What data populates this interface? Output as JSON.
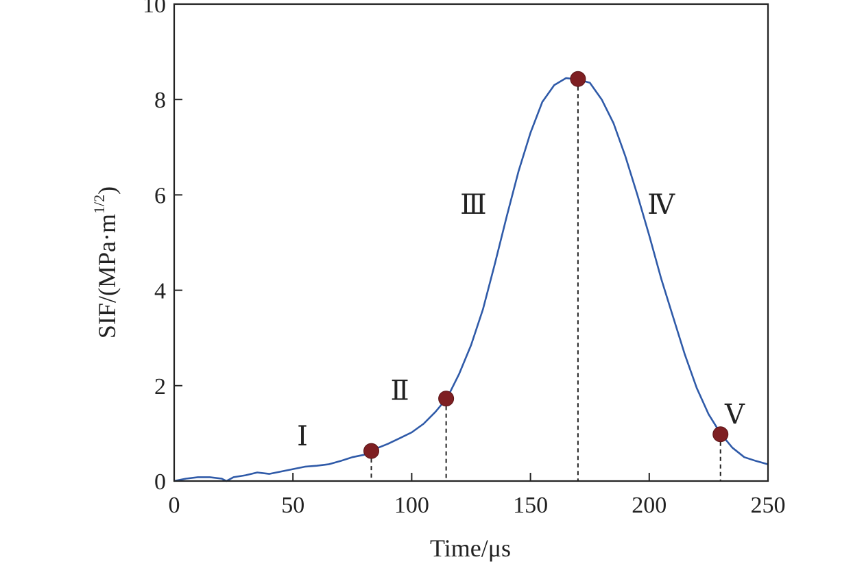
{
  "chart_data": {
    "type": "line",
    "title": "",
    "xlabel": "Time/μs",
    "ylabel_main": "SIF/(MPa·m",
    "ylabel_sup": "1/2",
    "ylabel_close": ")",
    "xlim": [
      0,
      250
    ],
    "ylim": [
      0,
      10
    ],
    "xticks": [
      0,
      50,
      100,
      150,
      200,
      250
    ],
    "yticks": [
      0,
      2,
      4,
      6,
      8,
      10
    ],
    "x_tick_labels": [
      "0",
      "50",
      "100",
      "150",
      "200",
      "250"
    ],
    "y_tick_labels": [
      "0",
      "2",
      "4",
      "6",
      "8",
      "10"
    ],
    "grid": false,
    "series": [
      {
        "color": "#2f5aa8",
        "x": [
          0,
          5,
          10,
          15,
          20,
          22,
          25,
          30,
          35,
          40,
          45,
          50,
          55,
          60,
          65,
          70,
          75,
          80,
          83,
          85,
          90,
          95,
          100,
          105,
          110,
          115,
          120,
          125,
          130,
          135,
          140,
          145,
          150,
          155,
          160,
          165,
          170,
          175,
          180,
          185,
          190,
          195,
          200,
          205,
          210,
          215,
          220,
          225,
          230,
          235,
          240,
          245,
          250
        ],
        "y": [
          0.0,
          0.05,
          0.08,
          0.08,
          0.05,
          0.0,
          0.08,
          0.12,
          0.18,
          0.15,
          0.2,
          0.25,
          0.3,
          0.32,
          0.35,
          0.42,
          0.5,
          0.55,
          0.63,
          0.68,
          0.78,
          0.9,
          1.02,
          1.2,
          1.45,
          1.75,
          2.25,
          2.85,
          3.6,
          4.55,
          5.55,
          6.5,
          7.3,
          7.95,
          8.3,
          8.45,
          8.42,
          8.35,
          8.0,
          7.5,
          6.8,
          6.0,
          5.15,
          4.25,
          3.45,
          2.65,
          1.95,
          1.4,
          1.0,
          0.7,
          0.5,
          0.42,
          0.35
        ]
      }
    ],
    "markers": [
      {
        "x": 83,
        "y": 0.63,
        "color": "#7e1f22"
      },
      {
        "x": 114.5,
        "y": 1.73,
        "color": "#7e1f22"
      },
      {
        "x": 170,
        "y": 8.43,
        "color": "#7e1f22"
      },
      {
        "x": 230,
        "y": 0.98,
        "color": "#7e1f22"
      }
    ],
    "annotations": [
      {
        "text": "Ⅰ",
        "x": 54,
        "y": 0.75
      },
      {
        "text": "Ⅱ",
        "x": 95,
        "y": 1.7
      },
      {
        "text": "Ⅲ",
        "x": 126,
        "y": 5.6
      },
      {
        "text": "Ⅳ",
        "x": 205,
        "y": 5.6
      },
      {
        "text": "Ⅴ",
        "x": 236,
        "y": 1.2
      }
    ]
  }
}
